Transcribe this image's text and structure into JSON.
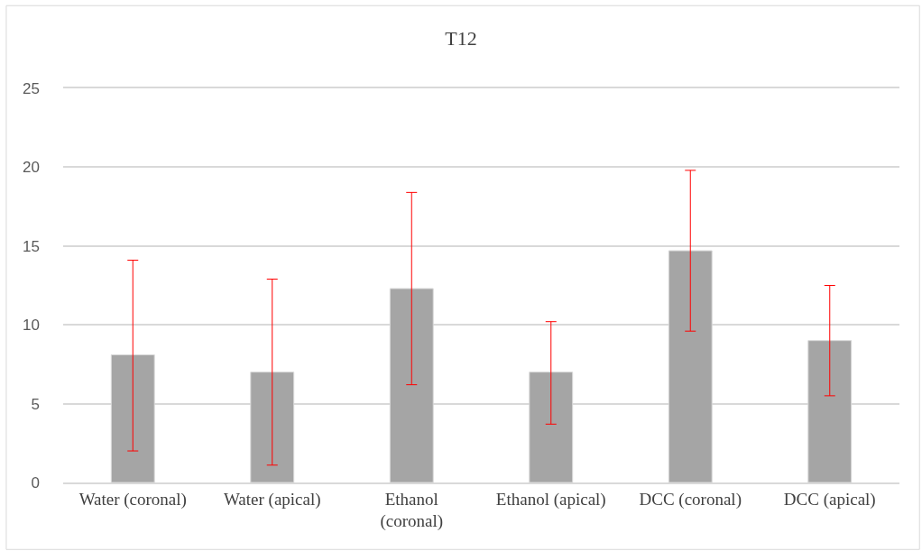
{
  "chart_data": {
    "type": "bar",
    "title": "T12",
    "categories": [
      "Water (coronal)",
      "Water (apical)",
      "Ethanol (coronal)",
      "Ethanol (apical)",
      "DCC (coronal)",
      "DCC (apical)"
    ],
    "values": [
      8.1,
      7.0,
      12.3,
      7.0,
      14.7,
      9.0
    ],
    "errors": [
      [
        2.0,
        14.1
      ],
      [
        1.1,
        12.9
      ],
      [
        6.2,
        18.4
      ],
      [
        3.7,
        10.2
      ],
      [
        9.6,
        19.8
      ],
      [
        5.5,
        12.5
      ]
    ],
    "color": "#a5a5a5",
    "ylim": [
      0,
      25
    ],
    "yticks": [
      0,
      5,
      10,
      15,
      20,
      25
    ],
    "grid": "y"
  }
}
